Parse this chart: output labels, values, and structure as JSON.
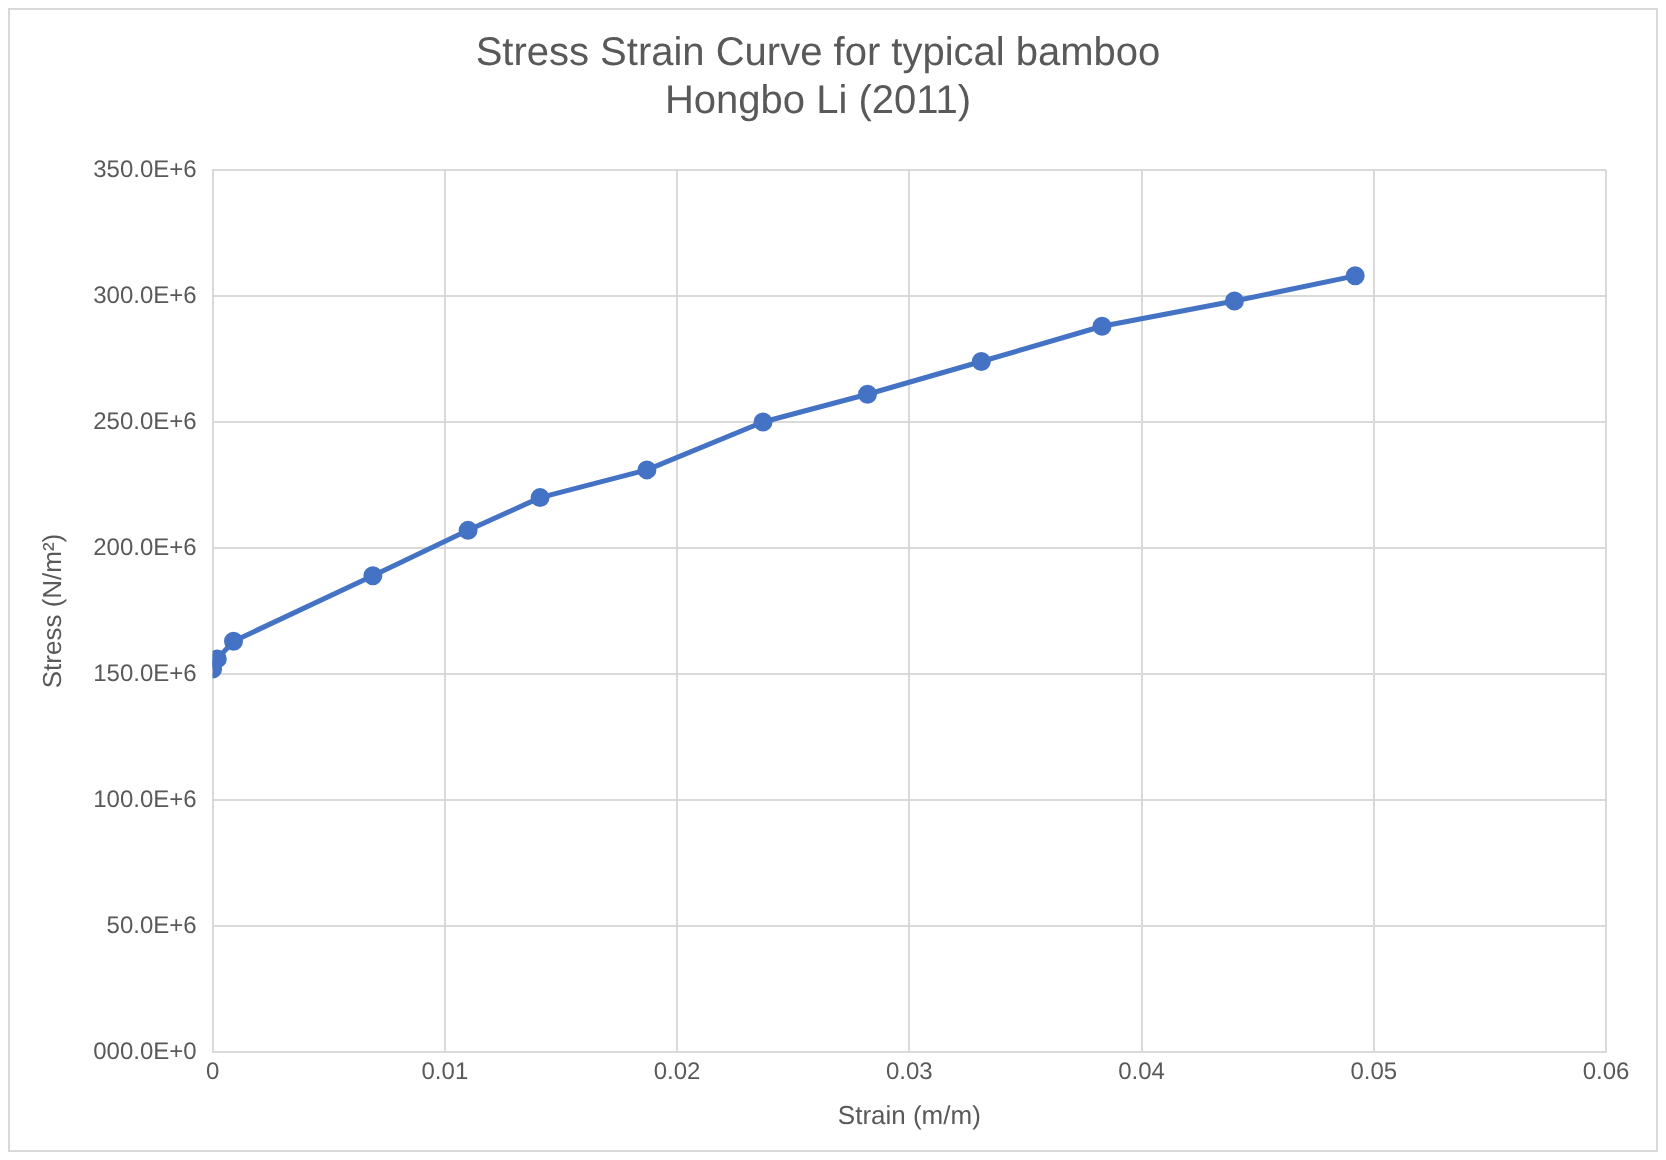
{
  "chart_data": {
    "type": "line",
    "title": "Stress Strain Curve for typical bamboo\nHongbo Li (2011)",
    "xlabel": "Strain (m/m)",
    "ylabel": "Stress (N/m²)",
    "x": [
      0,
      0.0002,
      0.0009,
      0.0069,
      0.011,
      0.0141,
      0.0187,
      0.0237,
      0.0282,
      0.0331,
      0.0383,
      0.044,
      0.0492
    ],
    "series": [
      {
        "color": "#4472c4",
        "values": [
          152000000,
          156000000,
          163000000,
          189000000,
          207000000,
          220000000,
          231000000,
          250000000,
          261000000,
          274000000,
          288000000,
          298000000,
          308000000
        ]
      }
    ],
    "xlim": [
      0,
      0.06
    ],
    "xticks": [
      0,
      0.01,
      0.02,
      0.03,
      0.04,
      0.05,
      0.06
    ],
    "ylim": [
      0,
      350000000
    ],
    "yticks": [
      {
        "value": 0,
        "label": "000.0E+0"
      },
      {
        "value": 50000000,
        "label": "50.0E+6"
      },
      {
        "value": 100000000,
        "label": "100.0E+6"
      },
      {
        "value": 150000000,
        "label": "150.0E+6"
      },
      {
        "value": 200000000,
        "label": "200.0E+6"
      },
      {
        "value": 250000000,
        "label": "250.0E+6"
      },
      {
        "value": 300000000,
        "label": "300.0E+6"
      },
      {
        "value": 350000000,
        "label": "350.0E+6"
      }
    ],
    "grid": true,
    "legend": false,
    "marker": "circle",
    "line_style": "solid"
  }
}
